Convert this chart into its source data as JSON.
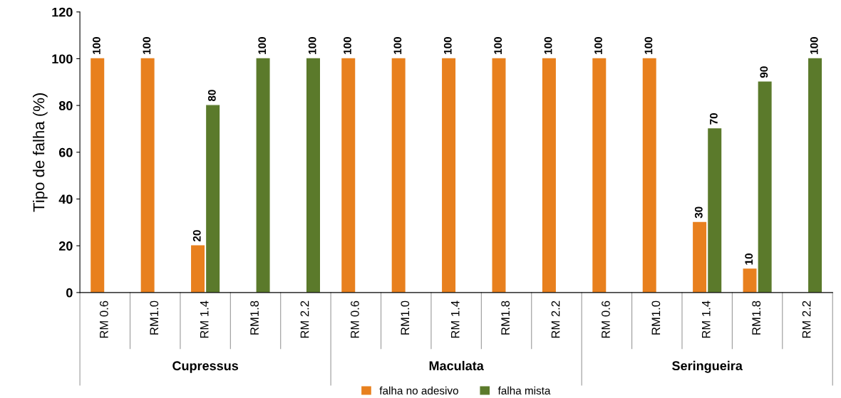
{
  "chart_data": {
    "type": "bar",
    "ylabel": "Tipo de falha (%)",
    "categories": [
      "RM 0.6",
      "RM1.0",
      "RM 1.4",
      "RM1.8",
      "RM 2.2",
      "RM 0.6",
      "RM1.0",
      "RM 1.4",
      "RM1.8",
      "RM 2.2",
      "RM 0.6",
      "RM1.0",
      "RM 1.4",
      "RM1.8",
      "RM 2.2"
    ],
    "series": [
      {
        "name": "falha no adesivo",
        "color": "#e8801e",
        "values": [
          100,
          100,
          20,
          null,
          null,
          100,
          100,
          100,
          100,
          100,
          100,
          100,
          30,
          10,
          null
        ]
      },
      {
        "name": "falha mista",
        "color": "#5b7a2b",
        "values": [
          null,
          null,
          80,
          100,
          100,
          null,
          null,
          null,
          null,
          null,
          null,
          null,
          70,
          90,
          100
        ]
      }
    ],
    "annotations": [
      "Cupressus",
      "Maculata",
      "Seringueira"
    ],
    "ylim": [
      0,
      120
    ],
    "yticks": [
      0,
      20,
      40,
      60,
      80,
      100,
      120
    ],
    "data_labels": true,
    "grid": false,
    "legend": "bottom"
  }
}
